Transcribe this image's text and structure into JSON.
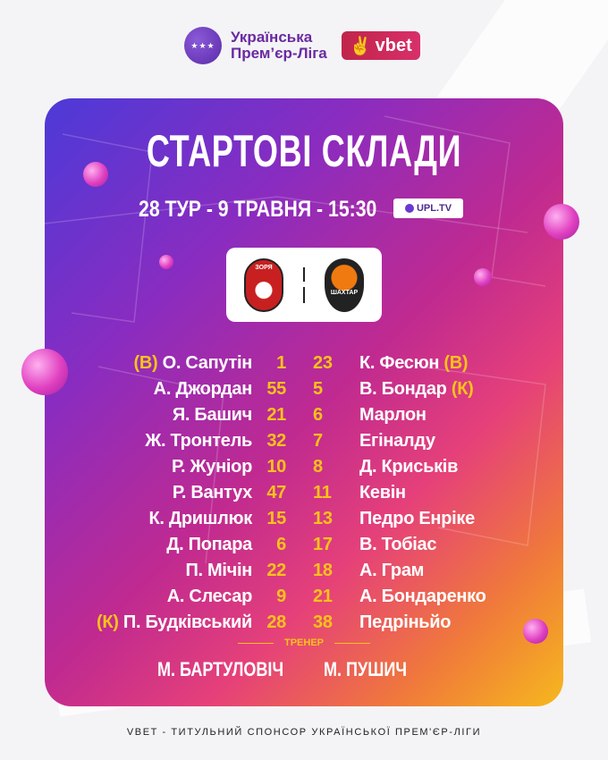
{
  "header": {
    "league_line1": "Українська",
    "league_line2": "Прем’єр-Ліга",
    "sponsor": "vbet"
  },
  "title": "СТАРТОВІ СКЛАДИ",
  "match_info": "28 ТУР - 9 ТРАВНЯ - 15:30",
  "broadcaster": "UPL.TV",
  "teams": {
    "home": "ЗОРЯ",
    "away": "ШАХТАР"
  },
  "lineups": [
    {
      "home_tag": "(В)",
      "home_name": "О. Сапутін",
      "home_num": "1",
      "away_num": "23",
      "away_name": "К. Фесюн",
      "away_tag": "(В)"
    },
    {
      "home_tag": "",
      "home_name": "А. Джордан",
      "home_num": "55",
      "away_num": "5",
      "away_name": "В. Бондар",
      "away_tag": "(К)"
    },
    {
      "home_tag": "",
      "home_name": "Я. Башич",
      "home_num": "21",
      "away_num": "6",
      "away_name": "Марлон",
      "away_tag": ""
    },
    {
      "home_tag": "",
      "home_name": "Ж. Тронтель",
      "home_num": "32",
      "away_num": "7",
      "away_name": "Егіналду",
      "away_tag": ""
    },
    {
      "home_tag": "",
      "home_name": "Р. Жуніор",
      "home_num": "10",
      "away_num": "8",
      "away_name": "Д. Криськів",
      "away_tag": ""
    },
    {
      "home_tag": "",
      "home_name": "Р. Вантух",
      "home_num": "47",
      "away_num": "11",
      "away_name": "Кевін",
      "away_tag": ""
    },
    {
      "home_tag": "",
      "home_name": "К. Дришлюк",
      "home_num": "15",
      "away_num": "13",
      "away_name": "Педро Енріке",
      "away_tag": ""
    },
    {
      "home_tag": "",
      "home_name": "Д. Попара",
      "home_num": "6",
      "away_num": "17",
      "away_name": "В. Тобіас",
      "away_tag": ""
    },
    {
      "home_tag": "",
      "home_name": "П. Мічін",
      "home_num": "22",
      "away_num": "18",
      "away_name": "А. Грам",
      "away_tag": ""
    },
    {
      "home_tag": "",
      "home_name": "А. Слесар",
      "home_num": "9",
      "away_num": "21",
      "away_name": "А. Бондаренко",
      "away_tag": ""
    },
    {
      "home_tag": "(К)",
      "home_name": "П. Будківський",
      "home_num": "28",
      "away_num": "38",
      "away_name": "Педріньйо",
      "away_tag": ""
    }
  ],
  "coach": {
    "label": "ТРЕНЕР",
    "home": "М. БАРТУЛОВІЧ",
    "away": "М. ПУШИЧ"
  },
  "footer": "VBET - ТИТУЛЬНИЙ СПОНСОР УКРАЇНСЬКОЇ ПРЕМ'ЄР-ЛІГИ",
  "colors": {
    "accent": "#f9c21a",
    "league_purple": "#6a2aa0",
    "vbet_red": "#c0244a"
  }
}
